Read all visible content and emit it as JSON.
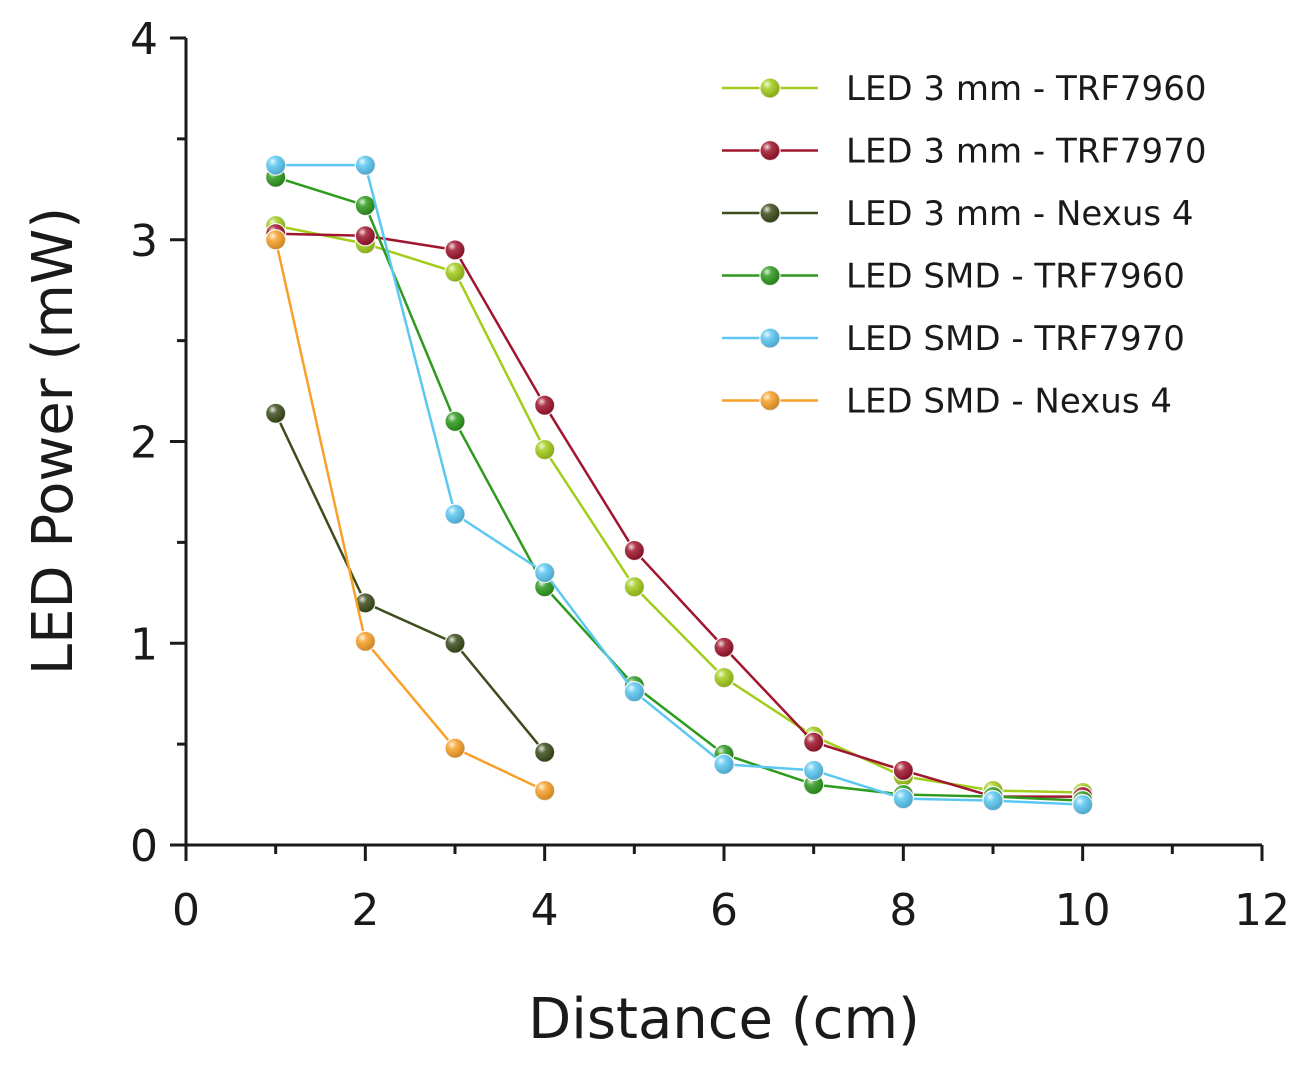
{
  "chart_data": {
    "type": "line",
    "title": "",
    "xlabel": "Distance (cm)",
    "ylabel": "LED Power (mW)",
    "xlim": [
      0,
      12
    ],
    "ylim": [
      0,
      4
    ],
    "x_ticks": [
      0,
      2,
      4,
      6,
      8,
      10,
      12
    ],
    "y_ticks": [
      0,
      1,
      2,
      3,
      4
    ],
    "x_tick_labels": [
      "0",
      "2",
      "4",
      "6",
      "8",
      "10",
      "12"
    ],
    "y_tick_labels": [
      "0",
      "1",
      "2",
      "3",
      "4"
    ],
    "x_minor_ticks": [
      1,
      3,
      5,
      7,
      9,
      11
    ],
    "y_minor_ticks": [
      0.5,
      1.5,
      2.5,
      3.5
    ],
    "grid": false,
    "legend_position": "top-right",
    "series": [
      {
        "name": "LED 3 mm - TRF7960",
        "color": "#a3cc1c",
        "x": [
          1,
          2,
          3,
          4,
          5,
          6,
          7,
          8,
          9,
          10
        ],
        "y": [
          3.07,
          2.98,
          2.84,
          1.96,
          1.28,
          0.83,
          0.54,
          0.34,
          0.27,
          0.26
        ]
      },
      {
        "name": "LED 3 mm - TRF7970",
        "color": "#a0162e",
        "x": [
          1,
          2,
          3,
          4,
          5,
          6,
          7,
          8,
          9,
          10
        ],
        "y": [
          3.03,
          3.02,
          2.95,
          2.18,
          1.46,
          0.98,
          0.51,
          0.37,
          0.24,
          0.24
        ]
      },
      {
        "name": "LED 3 mm - Nexus 4",
        "color": "#3d4d1c",
        "x": [
          1,
          2,
          3,
          4
        ],
        "y": [
          2.14,
          1.2,
          1.0,
          0.46
        ]
      },
      {
        "name": "LED SMD - TRF7960",
        "color": "#2e9a1e",
        "x": [
          1,
          2,
          3,
          4,
          5,
          6,
          7,
          8,
          9,
          10
        ],
        "y": [
          3.31,
          3.17,
          2.1,
          1.28,
          0.79,
          0.45,
          0.3,
          0.25,
          0.24,
          0.22
        ]
      },
      {
        "name": "LED SMD - TRF7970",
        "color": "#5cc8f2",
        "x": [
          1,
          2,
          3,
          4,
          5,
          6,
          7,
          8,
          9,
          10
        ],
        "y": [
          3.37,
          3.37,
          1.64,
          1.35,
          0.76,
          0.4,
          0.37,
          0.23,
          0.22,
          0.2
        ]
      },
      {
        "name": "LED SMD - Nexus 4",
        "color": "#f7a12a",
        "x": [
          1,
          2,
          3,
          4
        ],
        "y": [
          3.0,
          1.01,
          0.48,
          0.27
        ]
      }
    ]
  }
}
